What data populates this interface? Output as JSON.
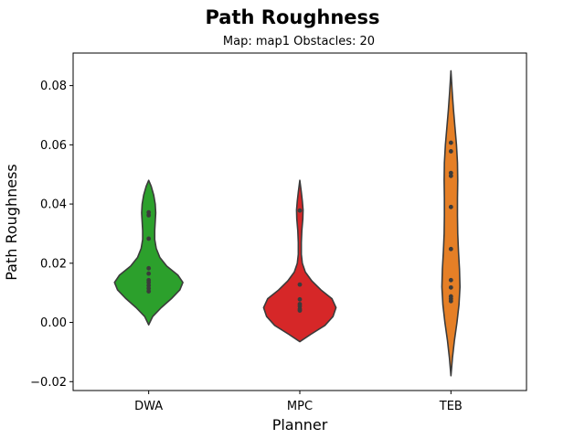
{
  "chart_data": {
    "type": "violin",
    "title": "Path Roughness",
    "subtitle": "Map: map1 Obstacles: 20",
    "xlabel": "Planner",
    "ylabel": "Path Roughness",
    "ylim": [
      -0.023,
      0.091
    ],
    "yticks": [
      -0.02,
      0.0,
      0.02,
      0.04,
      0.06,
      0.08
    ],
    "ytick_labels": [
      "−0.02",
      "0.00",
      "0.02",
      "0.04",
      "0.06",
      "0.08"
    ],
    "grid": false,
    "legend": "none",
    "categories": [
      "DWA",
      "MPC",
      "TEB"
    ],
    "series": [
      {
        "category": "DWA",
        "color": "#2ca02c",
        "range": [
          -0.0008,
          0.048
        ],
        "points": [
          0.0372,
          0.0362,
          0.0283,
          0.0183,
          0.0165,
          0.0143,
          0.0135,
          0.0125,
          0.0115,
          0.0105
        ],
        "density": [
          [
            -0.0008,
            0.0
          ],
          [
            0.002,
            0.08
          ],
          [
            0.005,
            0.25
          ],
          [
            0.008,
            0.45
          ],
          [
            0.011,
            0.62
          ],
          [
            0.0135,
            0.68
          ],
          [
            0.016,
            0.58
          ],
          [
            0.019,
            0.36
          ],
          [
            0.022,
            0.22
          ],
          [
            0.025,
            0.15
          ],
          [
            0.028,
            0.12
          ],
          [
            0.031,
            0.12
          ],
          [
            0.034,
            0.13
          ],
          [
            0.037,
            0.14
          ],
          [
            0.04,
            0.13
          ],
          [
            0.043,
            0.1
          ],
          [
            0.046,
            0.05
          ],
          [
            0.048,
            0.0
          ]
        ]
      },
      {
        "category": "MPC",
        "color": "#d62728",
        "range": [
          -0.0065,
          0.048
        ],
        "points": [
          0.0378,
          0.0128,
          0.0078,
          0.0062,
          0.0055,
          0.0045,
          0.004
        ],
        "density": [
          [
            -0.0065,
            0.0
          ],
          [
            -0.004,
            0.22
          ],
          [
            -0.001,
            0.5
          ],
          [
            0.002,
            0.66
          ],
          [
            0.005,
            0.72
          ],
          [
            0.008,
            0.64
          ],
          [
            0.011,
            0.42
          ],
          [
            0.014,
            0.24
          ],
          [
            0.017,
            0.11
          ],
          [
            0.02,
            0.05
          ],
          [
            0.023,
            0.03
          ],
          [
            0.027,
            0.03
          ],
          [
            0.031,
            0.04
          ],
          [
            0.035,
            0.06
          ],
          [
            0.038,
            0.065
          ],
          [
            0.041,
            0.05
          ],
          [
            0.044,
            0.03
          ],
          [
            0.048,
            0.0
          ]
        ]
      },
      {
        "category": "TEB",
        "color": "#e57f26",
        "range": [
          -0.018,
          0.085
        ],
        "points": [
          0.0607,
          0.0578,
          0.0505,
          0.0495,
          0.039,
          0.0248,
          0.0143,
          0.0118,
          0.0088,
          0.008,
          0.0072
        ],
        "density": [
          [
            -0.018,
            0.0
          ],
          [
            -0.012,
            0.03
          ],
          [
            -0.006,
            0.07
          ],
          [
            0.0,
            0.12
          ],
          [
            0.006,
            0.16
          ],
          [
            0.012,
            0.18
          ],
          [
            0.018,
            0.17
          ],
          [
            0.024,
            0.15
          ],
          [
            0.03,
            0.135
          ],
          [
            0.036,
            0.13
          ],
          [
            0.042,
            0.13
          ],
          [
            0.048,
            0.135
          ],
          [
            0.054,
            0.13
          ],
          [
            0.06,
            0.11
          ],
          [
            0.066,
            0.08
          ],
          [
            0.072,
            0.05
          ],
          [
            0.078,
            0.025
          ],
          [
            0.085,
            0.0
          ]
        ]
      }
    ]
  }
}
